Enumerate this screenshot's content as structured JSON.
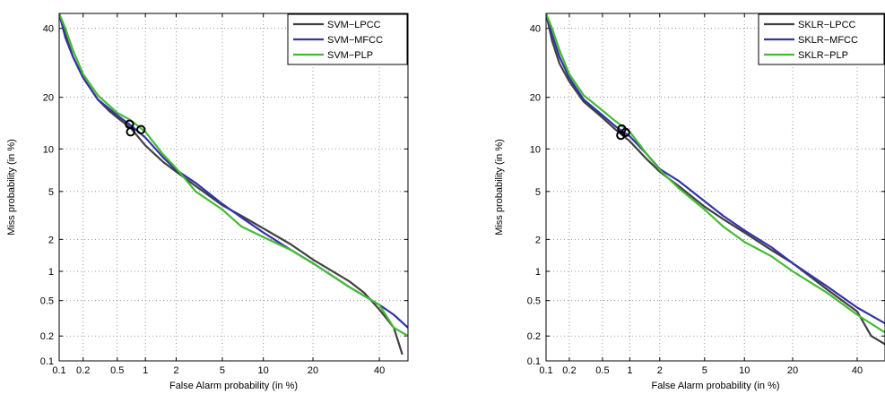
{
  "chart_data": [
    {
      "type": "line",
      "title": "",
      "xlabel": "False Alarm probability (in %)",
      "ylabel": "Miss probability (in %)",
      "x_scale": "probit",
      "y_scale": "probit",
      "xlim": [
        0.1,
        50
      ],
      "ylim": [
        0.1,
        45
      ],
      "xticks": [
        0.1,
        0.2,
        0.5,
        1,
        2,
        5,
        10,
        20,
        40
      ],
      "xtick_labels": [
        "0.1",
        "0.2",
        "0.5",
        "1",
        "2",
        "5",
        "10",
        "20",
        "40"
      ],
      "yticks": [
        0.1,
        0.2,
        0.5,
        1,
        2,
        5,
        10,
        20,
        40
      ],
      "ytick_labels": [
        "0.1",
        "0.2",
        "0.5",
        "1",
        "2",
        "5",
        "10",
        "20",
        "40"
      ],
      "grid": true,
      "legend_position": "top-right",
      "series": [
        {
          "name": "SVM−LPCC",
          "color": "#404040",
          "x": [
            0.1,
            0.12,
            0.15,
            0.2,
            0.3,
            0.4,
            0.5,
            0.7,
            1,
            1.5,
            2,
            3,
            5,
            7,
            10,
            15,
            20,
            30,
            35,
            40,
            45,
            48
          ],
          "y": [
            45,
            38,
            31,
            25,
            19.5,
            17,
            15.5,
            13.5,
            10.5,
            8.2,
            7,
            5.5,
            3.9,
            3.2,
            2.5,
            1.8,
            1.3,
            0.8,
            0.6,
            0.4,
            0.25,
            0.12
          ]
        },
        {
          "name": "SVM−MFCC",
          "color": "#3333aa",
          "x": [
            0.1,
            0.12,
            0.15,
            0.2,
            0.3,
            0.5,
            0.7,
            1,
            1.5,
            2,
            3,
            5,
            7,
            10,
            15,
            20,
            30,
            40,
            45,
            50
          ],
          "y": [
            45,
            37,
            31,
            25,
            19.5,
            16,
            14,
            11.8,
            8.8,
            7.2,
            5.8,
            4,
            3.1,
            2.3,
            1.6,
            1.2,
            0.7,
            0.45,
            0.35,
            0.25
          ]
        },
        {
          "name": "SVM−PLP",
          "color": "#44bb33",
          "x": [
            0.1,
            0.12,
            0.15,
            0.2,
            0.3,
            0.5,
            0.7,
            1,
            1.5,
            2,
            3,
            5,
            7,
            10,
            15,
            20,
            30,
            40,
            45,
            50
          ],
          "y": [
            45,
            40,
            33,
            26,
            20.5,
            16.5,
            15,
            12.8,
            9.2,
            7.4,
            5,
            3.6,
            2.6,
            2.1,
            1.6,
            1.2,
            0.7,
            0.45,
            0.25,
            0.2
          ]
        }
      ],
      "markers": [
        {
          "x": 0.68,
          "y": 14.2
        },
        {
          "x": 0.7,
          "y": 12.8
        },
        {
          "x": 0.9,
          "y": 13.2
        }
      ]
    },
    {
      "type": "line",
      "title": "",
      "xlabel": "False Alarm probability (in %)",
      "ylabel": "Miss probability (in %)",
      "x_scale": "probit",
      "y_scale": "probit",
      "xlim": [
        0.1,
        50
      ],
      "ylim": [
        0.1,
        45
      ],
      "xticks": [
        0.1,
        0.2,
        0.5,
        1,
        2,
        5,
        10,
        20,
        40
      ],
      "xtick_labels": [
        "0.1",
        "0.2",
        "0.5",
        "1",
        "2",
        "5",
        "10",
        "20",
        "40"
      ],
      "yticks": [
        0.1,
        0.2,
        0.5,
        1,
        2,
        5,
        10,
        20,
        40
      ],
      "ytick_labels": [
        "0.1",
        "0.2",
        "0.5",
        "1",
        "2",
        "5",
        "10",
        "20",
        "40"
      ],
      "grid": true,
      "legend_position": "top-right",
      "series": [
        {
          "name": "SKLR−LPCC",
          "color": "#404040",
          "x": [
            0.1,
            0.12,
            0.15,
            0.2,
            0.3,
            0.5,
            0.7,
            1,
            1.5,
            2,
            3,
            5,
            7,
            10,
            15,
            20,
            30,
            40,
            45,
            50
          ],
          "y": [
            45,
            36,
            29,
            24,
            19,
            15.5,
            13.2,
            11.2,
            8.5,
            7,
            5.5,
            3.8,
            3,
            2.3,
            1.6,
            1.2,
            0.65,
            0.38,
            0.2,
            0.16
          ]
        },
        {
          "name": "SKLR−MFCC",
          "color": "#3333aa",
          "x": [
            0.1,
            0.12,
            0.15,
            0.2,
            0.3,
            0.5,
            0.7,
            1,
            1.5,
            2,
            3,
            5,
            7,
            10,
            15,
            20,
            30,
            40,
            50
          ],
          "y": [
            45,
            38,
            31,
            25,
            19.5,
            16,
            13.8,
            12,
            9.2,
            7.3,
            6,
            4.2,
            3.2,
            2.4,
            1.7,
            1.2,
            0.7,
            0.42,
            0.28
          ]
        },
        {
          "name": "SKLR−PLP",
          "color": "#44bb33",
          "x": [
            0.1,
            0.12,
            0.15,
            0.2,
            0.3,
            0.5,
            0.7,
            1,
            1.5,
            2,
            3,
            5,
            7,
            10,
            15,
            20,
            30,
            40,
            50
          ],
          "y": [
            45,
            40,
            33,
            26,
            20.5,
            17,
            14.8,
            12.8,
            9.2,
            7.2,
            5.3,
            3.6,
            2.6,
            1.9,
            1.4,
            1,
            0.6,
            0.35,
            0.22
          ]
        }
      ],
      "markers": [
        {
          "x": 0.8,
          "y": 12.2
        },
        {
          "x": 0.9,
          "y": 12.7
        },
        {
          "x": 0.82,
          "y": 13.3
        }
      ]
    }
  ]
}
